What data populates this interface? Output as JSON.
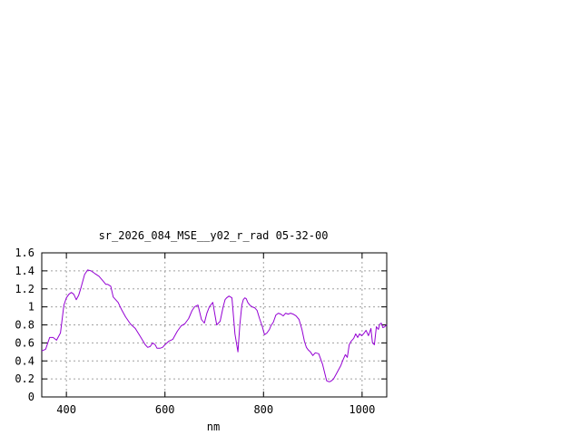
{
  "chart_data": {
    "type": "line",
    "title": "sr_2026_084_MSE__y02_r_rad 05-32-00",
    "xlabel": "nm",
    "ylabel": "",
    "xlim": [
      350,
      1050
    ],
    "ylim": [
      0,
      1.6
    ],
    "xticks": [
      400,
      600,
      800,
      1000
    ],
    "xtick_labels": [
      "400",
      "600",
      "800",
      "1000"
    ],
    "yticks": [
      0,
      0.2,
      0.4,
      0.6,
      0.8,
      1,
      1.2,
      1.4,
      1.6
    ],
    "ytick_labels": [
      "0",
      "0.2",
      "0.4",
      "0.6",
      "0.8",
      "1",
      "1.2",
      "1.4",
      "1.6"
    ],
    "grid": true,
    "line_color": "#9400d3",
    "series": [
      {
        "x": [
          350,
          358,
          366,
          373,
          380,
          388,
          395,
          400,
          405,
          410,
          415,
          420,
          425,
          430,
          437,
          443,
          450,
          458,
          466,
          474,
          480,
          484,
          490,
          495,
          500,
          505,
          512,
          520,
          530,
          540,
          550,
          560,
          565,
          570,
          575,
          580,
          584,
          590,
          595,
          600,
          608,
          616,
          625,
          633,
          640,
          648,
          655,
          660,
          667,
          674,
          680,
          685,
          690,
          697,
          705,
          712,
          718,
          722,
          725,
          730,
          736,
          742,
          748,
          752,
          756,
          759,
          762,
          765,
          768,
          772,
          777,
          782,
          787,
          792,
          797,
          802,
          807,
          812,
          815,
          820,
          825,
          830,
          835,
          840,
          845,
          850,
          855,
          860,
          866,
          872,
          878,
          883,
          887,
          891,
          895,
          900,
          905,
          912,
          920,
          925,
          928,
          932,
          935,
          938,
          942,
          947,
          952,
          957,
          962,
          966,
          970,
          974,
          978,
          983,
          987,
          991,
          995,
          999,
          1003,
          1008,
          1013,
          1018,
          1021,
          1025,
          1029,
          1033,
          1036,
          1039,
          1042,
          1046,
          1050
        ],
        "y": [
          0.51,
          0.53,
          0.66,
          0.66,
          0.63,
          0.71,
          1.02,
          1.1,
          1.14,
          1.16,
          1.14,
          1.08,
          1.13,
          1.22,
          1.36,
          1.41,
          1.4,
          1.37,
          1.34,
          1.29,
          1.25,
          1.25,
          1.23,
          1.11,
          1.08,
          1.05,
          0.97,
          0.89,
          0.81,
          0.76,
          0.67,
          0.58,
          0.55,
          0.56,
          0.6,
          0.58,
          0.54,
          0.54,
          0.55,
          0.58,
          0.62,
          0.64,
          0.73,
          0.79,
          0.81,
          0.87,
          0.96,
          1.0,
          1.02,
          0.86,
          0.82,
          0.93,
          1.0,
          1.05,
          0.8,
          0.84,
          1.0,
          1.08,
          1.1,
          1.12,
          1.1,
          0.7,
          0.5,
          0.8,
          1.02,
          1.08,
          1.1,
          1.09,
          1.05,
          1.02,
          1.0,
          0.99,
          0.96,
          0.87,
          0.79,
          0.69,
          0.71,
          0.75,
          0.79,
          0.83,
          0.91,
          0.93,
          0.92,
          0.9,
          0.93,
          0.92,
          0.93,
          0.92,
          0.9,
          0.86,
          0.75,
          0.62,
          0.55,
          0.52,
          0.5,
          0.46,
          0.49,
          0.48,
          0.36,
          0.25,
          0.18,
          0.17,
          0.17,
          0.18,
          0.2,
          0.25,
          0.3,
          0.35,
          0.42,
          0.47,
          0.44,
          0.58,
          0.62,
          0.65,
          0.7,
          0.66,
          0.7,
          0.68,
          0.7,
          0.74,
          0.68,
          0.76,
          0.6,
          0.58,
          0.78,
          0.75,
          0.81,
          0.82,
          0.77,
          0.78,
          0.8
        ]
      }
    ]
  }
}
